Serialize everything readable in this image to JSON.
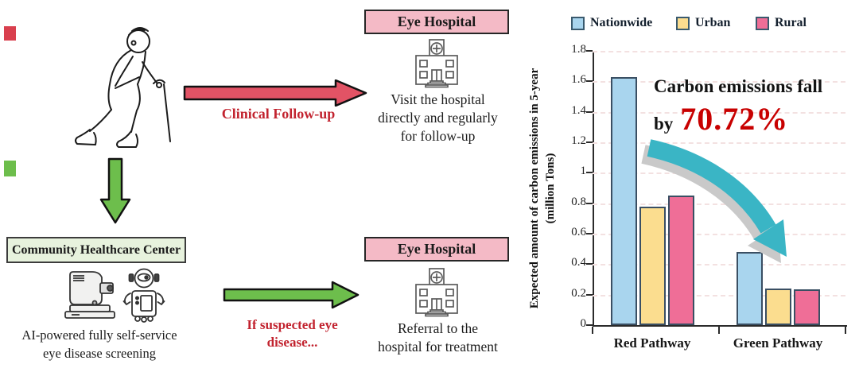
{
  "colors": {
    "nationwide_blue": "#A9D5EE",
    "urban_yellow": "#FBDD8F",
    "rural_pink": "#EF6E97",
    "red_arrow": "#E25365",
    "green_arrow": "#6DBE4C",
    "pink_banner": "#F4BAC6",
    "green_banner": "#E7F2DD",
    "accent_red_text": "#C2232F",
    "highlight_red": "#C80000",
    "teal_swoosh": "#3AB5C5"
  },
  "flow": {
    "icons": {
      "person": "elderly-person-walking-with-cane",
      "hospital": "hospital-building",
      "screening_machine": "ai-eye-screening-machine",
      "robot": "service-robot"
    },
    "clinical_followup_label": "Clinical Follow-up",
    "top_hospital": {
      "title": "Eye Hospital",
      "lines": [
        "Visit the hospital",
        "directly and regularly",
        "for follow-up"
      ]
    },
    "community_center": {
      "title": "Community Healthcare Center",
      "lines": [
        "AI-powered fully self-service",
        "eye disease screening"
      ]
    },
    "suspected_lines": [
      "If suspected eye",
      "disease..."
    ],
    "bottom_hospital": {
      "title": "Eye Hospital",
      "lines": [
        "Referral to the",
        "hospital for treatment"
      ]
    }
  },
  "chart_data": {
    "type": "bar",
    "categories": [
      "Red Pathway",
      "Green Pathway"
    ],
    "series": [
      {
        "name": "Nationwide",
        "color": "#A9D5EE",
        "values": [
          1.63,
          0.48
        ]
      },
      {
        "name": "Urban",
        "color": "#FBDD8F",
        "values": [
          0.78,
          0.24
        ]
      },
      {
        "name": "Rural",
        "color": "#EF6E97",
        "values": [
          0.85,
          0.235
        ]
      }
    ],
    "ylabel": "Expected amount of carbon emissions in 5-year",
    "ylabel_line2": "(million Tons)",
    "ylim": [
      0,
      1.8
    ],
    "yticks": [
      0,
      0.2,
      0.4,
      0.6,
      0.8,
      1,
      1.2,
      1.4,
      1.6,
      1.8
    ],
    "grid": "dashed-horizontal",
    "legend_position": "top",
    "annotation": {
      "text": "Carbon emissions fall",
      "prefix": "by",
      "value": "70.72%"
    }
  }
}
